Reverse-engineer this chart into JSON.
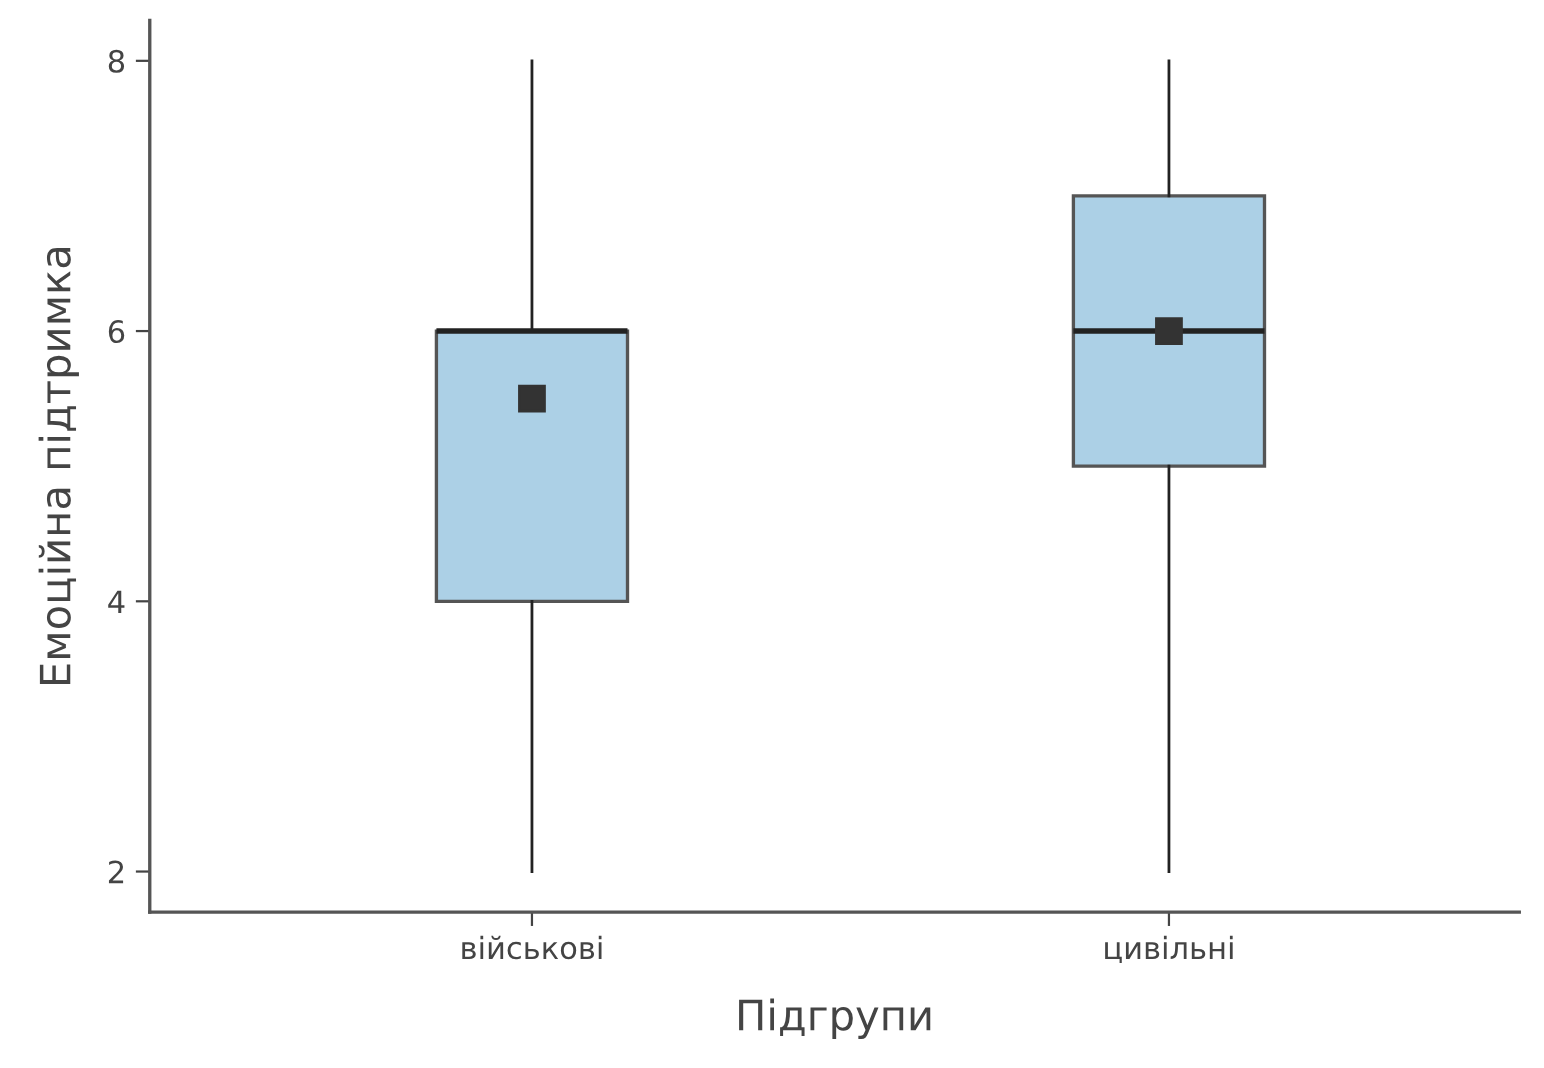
{
  "chart_data": {
    "type": "box",
    "xlabel": "Підгрупи",
    "ylabel": "Емоційна підтримка",
    "categories": [
      "військові",
      "цивільні"
    ],
    "boxes": [
      {
        "low": 2,
        "q1": 4,
        "median": 6,
        "q3": 6,
        "high": 8,
        "mean": 5.5
      },
      {
        "low": 2,
        "q1": 5,
        "median": 6,
        "q3": 7,
        "high": 8,
        "mean": 6.0
      }
    ],
    "color": "#acd0e6",
    "ylim": [
      1.7,
      8.3
    ],
    "yticks": [
      2,
      4,
      6,
      8
    ],
    "grid": false,
    "legend": false,
    "marker": "square"
  }
}
